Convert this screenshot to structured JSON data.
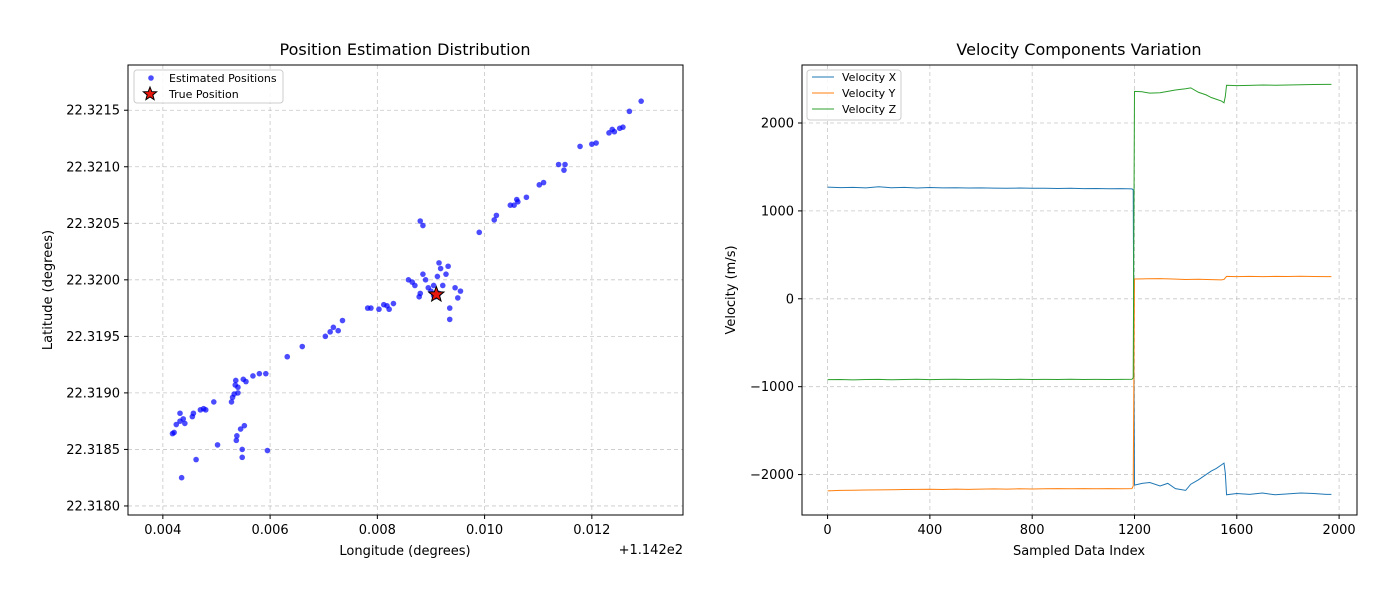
{
  "chart_data": [
    {
      "type": "scatter",
      "title": "Position Estimation Distribution",
      "xlabel": "Longitude (degrees)",
      "ylabel": "Latitude (degrees)",
      "offset_text": "+1.142e2",
      "xlim": [
        0.00335,
        0.0137
      ],
      "ylim": [
        22.31792,
        22.3219
      ],
      "xticks": [
        0.004,
        0.006,
        0.008,
        0.01,
        0.012
      ],
      "xtick_labels": [
        "0.004",
        "0.006",
        "0.008",
        "0.010",
        "0.012"
      ],
      "yticks": [
        22.318,
        22.3185,
        22.319,
        22.3195,
        22.32,
        22.3205,
        22.321,
        22.3215
      ],
      "ytick_labels": [
        "22.3180",
        "22.3185",
        "22.3190",
        "22.3195",
        "22.3200",
        "22.3205",
        "22.3210",
        "22.3215"
      ],
      "grid": true,
      "legend_position": "top-left",
      "colors": {
        "estimated": "#0000ff",
        "true": "#e8160c"
      },
      "series": [
        {
          "name": "Estimated Positions",
          "x": [
            0.00421,
            0.00425,
            0.00432,
            0.00438,
            0.00441,
            0.00455,
            0.00457,
            0.0047,
            0.00476,
            0.0048,
            0.00495,
            0.00528,
            0.0053,
            0.00533,
            0.00536,
            0.0054,
            0.0055,
            0.00535,
            0.0054,
            0.00555,
            0.00568,
            0.0058,
            0.00592,
            0.00632,
            0.0066,
            0.00703,
            0.00712,
            0.00718,
            0.00727,
            0.00735,
            0.00782,
            0.00788,
            0.00803,
            0.00812,
            0.00818,
            0.00822,
            0.0083,
            0.00858,
            0.00865,
            0.0087,
            0.0088,
            0.00885,
            0.0089,
            0.00895,
            0.009,
            0.00905,
            0.00908,
            0.00912,
            0.00915,
            0.00918,
            0.00922,
            0.00928,
            0.00932,
            0.00945,
            0.0095,
            0.00955,
            0.0088,
            0.00885,
            0.00878,
            0.00935,
            0.00905,
            0.00915,
            0.00935,
            0.0099,
            0.01018,
            0.01022,
            0.01048,
            0.01055,
            0.0106,
            0.01062,
            0.01078,
            0.01102,
            0.0111,
            0.01138,
            0.01148,
            0.0115,
            0.01178,
            0.012,
            0.01208,
            0.01232,
            0.01238,
            0.01242,
            0.01252,
            0.01258,
            0.0127,
            0.01292,
            0.00418,
            0.00432,
            0.00435,
            0.00462,
            0.00502,
            0.00537,
            0.00538,
            0.00545,
            0.00548,
            0.00552,
            0.00548,
            0.00595
          ],
          "y": [
            22.31865,
            22.31872,
            22.31875,
            22.31877,
            22.31873,
            22.31879,
            22.31882,
            22.31885,
            22.31886,
            22.31885,
            22.31892,
            22.31892,
            22.31896,
            22.31899,
            22.31911,
            22.31905,
            22.31912,
            22.31907,
            22.319,
            22.3191,
            22.31915,
            22.31917,
            22.31917,
            22.31932,
            22.31941,
            22.3195,
            22.31954,
            22.31958,
            22.31955,
            22.31964,
            22.31975,
            22.31975,
            22.31974,
            22.31978,
            22.31977,
            22.31974,
            22.31979,
            22.32,
            22.31998,
            22.31995,
            22.31988,
            22.32005,
            22.32,
            22.31993,
            22.3199,
            22.31986,
            22.31985,
            22.32003,
            22.31988,
            22.3201,
            22.31995,
            22.32005,
            22.32012,
            22.31993,
            22.31984,
            22.3199,
            22.32052,
            22.32048,
            22.31985,
            22.31965,
            22.31995,
            22.32015,
            22.31975,
            22.32042,
            22.32053,
            22.32057,
            22.32066,
            22.32066,
            22.32071,
            22.32069,
            22.32073,
            22.32084,
            22.32086,
            22.32102,
            22.32097,
            22.32102,
            22.32118,
            22.3212,
            22.32121,
            22.3213,
            22.32133,
            22.32131,
            22.32134,
            22.32135,
            22.32149,
            22.32158,
            22.31864,
            22.31882,
            22.31825,
            22.31841,
            22.31854,
            22.31858,
            22.31862,
            22.31868,
            22.3185,
            22.31871,
            22.31843,
            22.31849
          ]
        },
        {
          "name": "True Position",
          "x": [
            0.0091
          ],
          "y": [
            22.31987
          ]
        }
      ]
    },
    {
      "type": "line",
      "title": "Velocity Components Variation",
      "xlabel": "Sampled Data Index",
      "ylabel": "Velocity (m/s)",
      "xlim": [
        -100,
        2070
      ],
      "ylim": [
        -2460,
        2660
      ],
      "xticks": [
        0,
        400,
        800,
        1200,
        1600,
        2000
      ],
      "xtick_labels": [
        "0",
        "400",
        "800",
        "1200",
        "1600",
        "2000"
      ],
      "yticks": [
        -2000,
        -1000,
        0,
        1000,
        2000
      ],
      "ytick_labels": [
        "−2000",
        "−1000",
        "0",
        "1000",
        "2000"
      ],
      "grid": true,
      "legend_position": "top-left",
      "series": [
        {
          "name": "Velocity X",
          "color": "#1f77b4",
          "x": [
            0,
            50,
            100,
            150,
            200,
            250,
            300,
            350,
            400,
            450,
            500,
            550,
            600,
            650,
            700,
            750,
            800,
            850,
            900,
            950,
            1000,
            1050,
            1100,
            1150,
            1190,
            1195,
            1200,
            1230,
            1260,
            1300,
            1330,
            1360,
            1400,
            1420,
            1450,
            1480,
            1500,
            1520,
            1540,
            1550,
            1555,
            1560,
            1600,
            1650,
            1700,
            1750,
            1800,
            1850,
            1900,
            1950,
            1970
          ],
          "y": [
            1270,
            1265,
            1268,
            1262,
            1275,
            1263,
            1268,
            1261,
            1266,
            1262,
            1263,
            1260,
            1262,
            1259,
            1258,
            1260,
            1257,
            1258,
            1255,
            1257,
            1254,
            1255,
            1252,
            1253,
            1250,
            1240,
            -2120,
            -2100,
            -2090,
            -2130,
            -2100,
            -2160,
            -2180,
            -2110,
            -2060,
            -2000,
            -1960,
            -1930,
            -1890,
            -1870,
            -1980,
            -2230,
            -2215,
            -2225,
            -2210,
            -2230,
            -2220,
            -2210,
            -2215,
            -2225,
            -2225
          ]
        },
        {
          "name": "Velocity Y",
          "color": "#ff7f0e",
          "x": [
            0,
            50,
            100,
            150,
            200,
            250,
            300,
            350,
            400,
            450,
            500,
            550,
            600,
            650,
            700,
            750,
            800,
            850,
            900,
            950,
            1000,
            1050,
            1100,
            1150,
            1190,
            1195,
            1200,
            1250,
            1300,
            1350,
            1400,
            1450,
            1500,
            1540,
            1550,
            1560,
            1600,
            1650,
            1700,
            1750,
            1800,
            1850,
            1900,
            1950,
            1970
          ],
          "y": [
            -2185,
            -2180,
            -2178,
            -2175,
            -2174,
            -2172,
            -2170,
            -2168,
            -2167,
            -2170,
            -2165,
            -2168,
            -2166,
            -2163,
            -2165,
            -2162,
            -2164,
            -2162,
            -2160,
            -2162,
            -2160,
            -2162,
            -2160,
            -2162,
            -2160,
            -2130,
            225,
            228,
            230,
            225,
            220,
            222,
            218,
            215,
            220,
            255,
            252,
            255,
            252,
            255,
            253,
            256,
            254,
            252,
            252
          ]
        },
        {
          "name": "Velocity Z",
          "color": "#2ca02c",
          "x": [
            0,
            50,
            100,
            150,
            200,
            250,
            300,
            350,
            400,
            450,
            500,
            550,
            600,
            650,
            700,
            750,
            800,
            850,
            900,
            950,
            1000,
            1050,
            1100,
            1150,
            1190,
            1195,
            1200,
            1230,
            1260,
            1300,
            1330,
            1360,
            1400,
            1420,
            1450,
            1480,
            1500,
            1520,
            1540,
            1550,
            1555,
            1560,
            1600,
            1650,
            1700,
            1750,
            1800,
            1850,
            1900,
            1950,
            1970
          ],
          "y": [
            -920,
            -918,
            -922,
            -919,
            -917,
            -921,
            -918,
            -916,
            -920,
            -917,
            -915,
            -919,
            -917,
            -916,
            -918,
            -916,
            -918,
            -917,
            -919,
            -916,
            -918,
            -917,
            -919,
            -917,
            -916,
            -900,
            2360,
            2355,
            2340,
            2345,
            2360,
            2375,
            2390,
            2400,
            2350,
            2320,
            2290,
            2270,
            2250,
            2230,
            2300,
            2430,
            2425,
            2428,
            2432,
            2430,
            2433,
            2436,
            2438,
            2440,
            2440
          ]
        }
      ]
    }
  ]
}
